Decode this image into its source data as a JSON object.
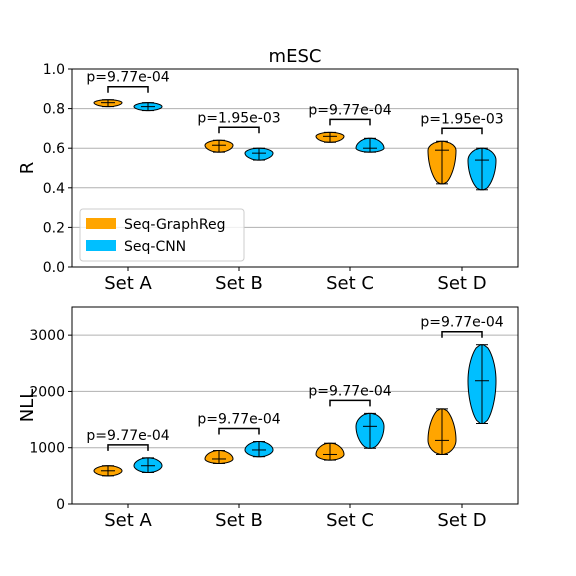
{
  "chart_data": [
    {
      "type": "violin",
      "title": "mESC",
      "ylabel": "R",
      "xlabel": "",
      "categories": [
        "Set A",
        "Set B",
        "Set C",
        "Set D"
      ],
      "ylim": [
        0.0,
        1.0
      ],
      "yticks": [
        "0.0",
        "0.2",
        "0.4",
        "0.6",
        "0.8",
        "1.0"
      ],
      "grid": "horizontal",
      "legend": {
        "placement": "lower-left",
        "entries": [
          "Seq-GraphReg",
          "Seq-CNN"
        ]
      },
      "series": [
        {
          "name": "Seq-GraphReg",
          "color": "#FFA500",
          "violins": [
            {
              "min": 0.81,
              "max": 0.845,
              "median": 0.83
            },
            {
              "min": 0.58,
              "max": 0.64,
              "median": 0.615
            },
            {
              "min": 0.63,
              "max": 0.68,
              "median": 0.66
            },
            {
              "min": 0.42,
              "max": 0.635,
              "median": 0.59
            }
          ]
        },
        {
          "name": "Seq-CNN",
          "color": "#00BFFF",
          "violins": [
            {
              "min": 0.79,
              "max": 0.83,
              "median": 0.81
            },
            {
              "min": 0.54,
              "max": 0.6,
              "median": 0.575
            },
            {
              "min": 0.58,
              "max": 0.65,
              "median": 0.6
            },
            {
              "min": 0.39,
              "max": 0.6,
              "median": 0.54
            }
          ]
        }
      ],
      "annotations": [
        "p=9.77e-04",
        "p=1.95e-03",
        "p=9.77e-04",
        "p=1.95e-03"
      ]
    },
    {
      "type": "violin",
      "title": "",
      "ylabel": "NLL",
      "xlabel": "",
      "categories": [
        "Set A",
        "Set B",
        "Set C",
        "Set D"
      ],
      "ylim": [
        0,
        3500
      ],
      "yticks": [
        "0",
        "1000",
        "2000",
        "3000"
      ],
      "grid": "horizontal",
      "series": [
        {
          "name": "Seq-GraphReg",
          "color": "#FFA500",
          "violins": [
            {
              "min": 500,
              "max": 680,
              "median": 590
            },
            {
              "min": 720,
              "max": 950,
              "median": 800
            },
            {
              "min": 780,
              "max": 1080,
              "median": 880
            },
            {
              "min": 880,
              "max": 1690,
              "median": 1130
            }
          ]
        },
        {
          "name": "Seq-CNN",
          "color": "#00BFFF",
          "violins": [
            {
              "min": 560,
              "max": 820,
              "median": 680
            },
            {
              "min": 840,
              "max": 1110,
              "median": 960
            },
            {
              "min": 990,
              "max": 1610,
              "median": 1380
            },
            {
              "min": 1430,
              "max": 2830,
              "median": 2190
            }
          ]
        }
      ],
      "annotations": [
        "p=9.77e-04",
        "p=9.77e-04",
        "p=9.77e-04",
        "p=9.77e-04"
      ]
    }
  ]
}
